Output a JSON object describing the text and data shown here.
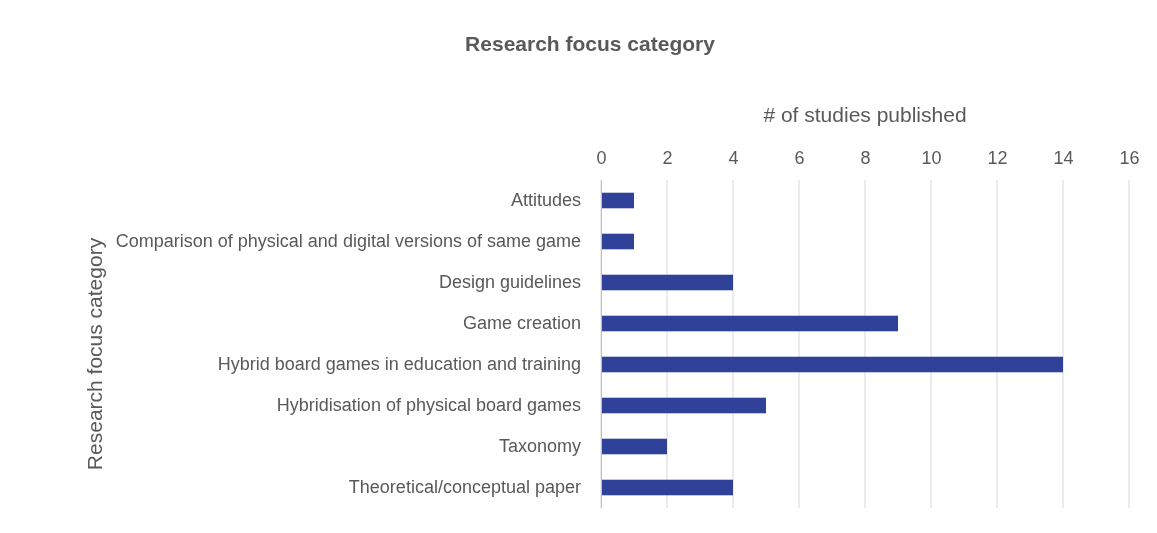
{
  "chart_data": {
    "type": "bar",
    "orientation": "horizontal",
    "title": "Research focus category",
    "xlabel": "# of studies published",
    "ylabel": "Research focus category",
    "categories": [
      "Attitudes",
      "Comparison of physical and digital versions of same game",
      "Design guidelines",
      "Game creation",
      "Hybrid board games in education and training",
      "Hybridisation of physical board games",
      "Taxonomy",
      "Theoretical/conceptual paper"
    ],
    "values": [
      1,
      1,
      4,
      9,
      14,
      5,
      2,
      4
    ],
    "color": "#2f4199",
    "xlim": [
      0,
      16
    ],
    "xticks": [
      0,
      2,
      4,
      6,
      8,
      10,
      12,
      14,
      16
    ],
    "grid": "x"
  }
}
